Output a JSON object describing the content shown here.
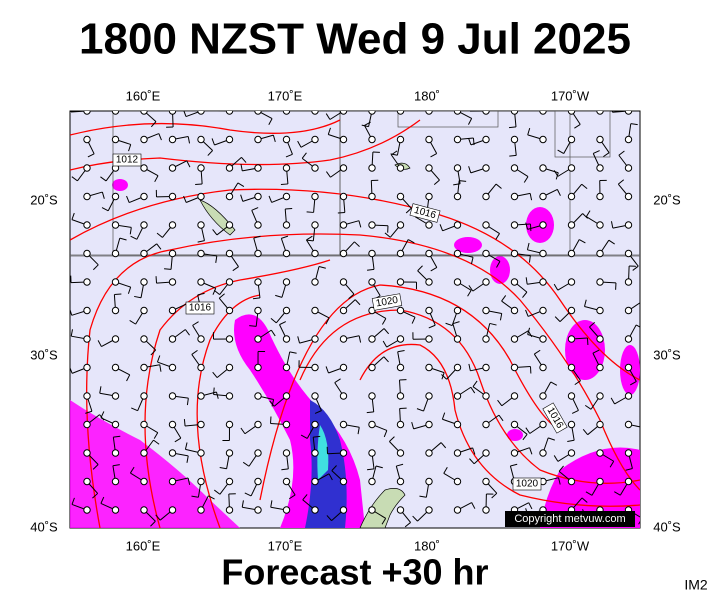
{
  "title": "1800 NZST Wed 9 Jul 2025",
  "map": {
    "lon_labels": [
      "160˚E",
      "170˚E",
      "180˚",
      "170˚W"
    ],
    "lat_labels": [
      "20˚S",
      "30˚S",
      "40˚S"
    ],
    "isobar_labels": [
      "1012",
      "1016",
      "1016",
      "1020",
      "1016",
      "1020"
    ],
    "copyright": "Copyright metvuw.com"
  },
  "footer": {
    "forecast": "Forecast +30 hr",
    "id": "IM2"
  }
}
